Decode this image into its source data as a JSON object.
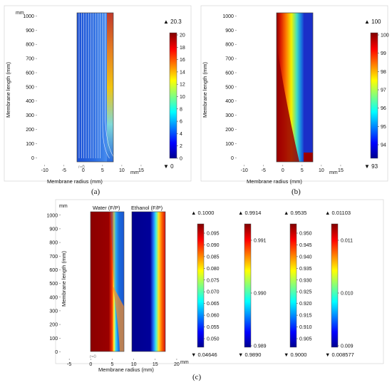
{
  "colors": {
    "plot_border": "#aaaaaa",
    "axis": "#555555",
    "streamline": "#ffffff"
  },
  "chart_data": [
    {
      "id": "a",
      "type": "heatmap",
      "caption": "(a)",
      "xlabel": "Membrane radius (mm)",
      "ylabel": "Membrane length (mm)",
      "y_unit": "mm",
      "x_unit": "mm",
      "xlim": [
        -12,
        20
      ],
      "ylim": [
        -50,
        1030
      ],
      "xticks": [
        -10,
        -5,
        0,
        5,
        10,
        15
      ],
      "yticks": [
        0,
        100,
        200,
        300,
        400,
        500,
        600,
        700,
        800,
        900,
        1000
      ],
      "domain": {
        "x": [
          0,
          8
        ],
        "y": [
          0,
          1000
        ],
        "split": 6
      },
      "axis_marker": "r=0",
      "colorbar": {
        "max_label": "20.3",
        "min_label": "0",
        "range": [
          0,
          20
        ],
        "ticks": [
          "20",
          "18",
          "16",
          "14",
          "12",
          "10",
          "8",
          "6",
          "4",
          "2",
          "0"
        ]
      }
    },
    {
      "id": "b",
      "type": "heatmap",
      "caption": "(b)",
      "xlabel": "Membrane radius (mm)",
      "ylabel": "Membrane length (mm)",
      "x_unit": "mm",
      "xlim": [
        -12,
        20
      ],
      "ylim": [
        -50,
        1030
      ],
      "xticks": [
        -10,
        -5,
        0,
        5,
        10,
        15
      ],
      "yticks": [
        0,
        100,
        200,
        300,
        400,
        500,
        600,
        700,
        800,
        900,
        1000
      ],
      "domain": {
        "x": [
          0,
          8
        ],
        "y": [
          0,
          1000
        ],
        "split": 6
      },
      "colorbar": {
        "max_label": "100",
        "min_label": "93",
        "range": [
          93,
          100
        ],
        "ticks": [
          "100",
          "99",
          "98",
          "97",
          "96",
          "95",
          "94"
        ]
      }
    },
    {
      "id": "c",
      "type": "heatmap",
      "caption": "(c)",
      "xlabel": "Membrane radius (mm)",
      "ylabel": "Membrane length (mm)",
      "y_unit": "mm",
      "x_unit": "mm",
      "xlim": [
        -7,
        22
      ],
      "ylim": [
        -50,
        1030
      ],
      "xticks": [
        -5,
        0,
        5,
        10,
        15,
        20
      ],
      "yticks": [
        0,
        100,
        200,
        300,
        400,
        500,
        600,
        700,
        800,
        900,
        1000
      ],
      "axis_marker": "r=0",
      "panels": [
        {
          "label": "Water (F/P)",
          "x": [
            0,
            8
          ]
        },
        {
          "label": "Ethanol (F/P)",
          "x": [
            10,
            18
          ]
        }
      ],
      "colorbars": [
        {
          "max_label": "0.1000",
          "min_label": "0.04646",
          "ticks": [
            "0.095",
            "0.090",
            "0.085",
            "0.080",
            "0.075",
            "0.070",
            "0.065",
            "0.060",
            "0.055",
            "0.050"
          ]
        },
        {
          "max_label": "0.9914",
          "min_label": "0.9890",
          "ticks": [
            "0.991",
            "0.990",
            "0.989"
          ]
        },
        {
          "max_label": "0.9535",
          "min_label": "0.9000",
          "ticks": [
            "0.950",
            "0.945",
            "0.940",
            "0.935",
            "0.930",
            "0.925",
            "0.920",
            "0.915",
            "0.910",
            "0.905"
          ]
        },
        {
          "max_label": "0.01103",
          "min_label": "0.008577",
          "ticks": [
            "0.011",
            "0.010",
            "0.009"
          ]
        }
      ]
    }
  ]
}
